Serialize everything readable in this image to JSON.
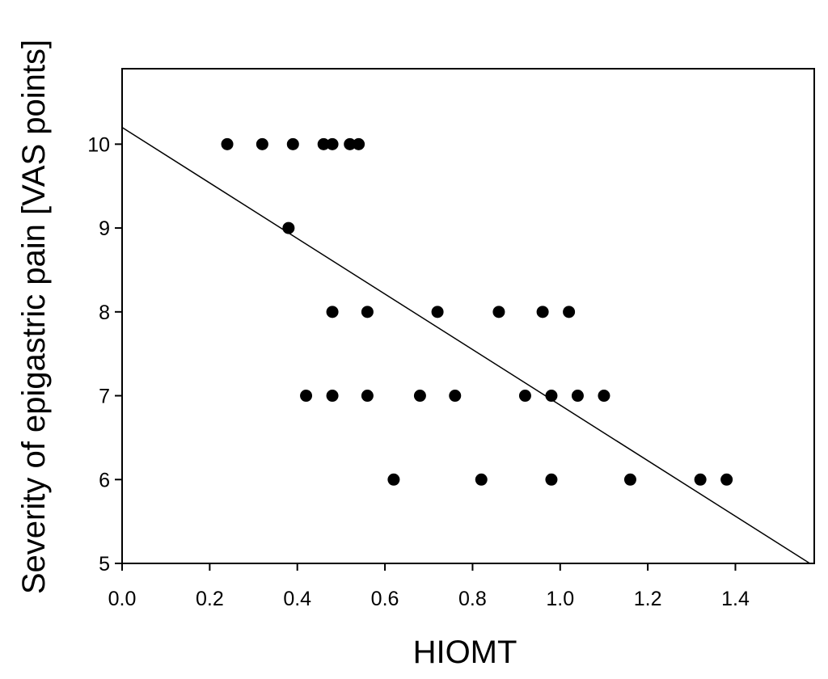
{
  "chart_data": {
    "type": "scatter",
    "title": "",
    "xlabel": "HIOMT",
    "ylabel": "Severity of epigastric pain [VAS points]",
    "xlim": [
      0.0,
      1.58
    ],
    "ylim": [
      5,
      10.9
    ],
    "x_ticks": [
      "0.0",
      "0.2",
      "0.4",
      "0.6",
      "0.8",
      "1.0",
      "1.2",
      "1.4"
    ],
    "y_ticks": [
      "5",
      "6",
      "7",
      "8",
      "9",
      "10"
    ],
    "grid": false,
    "series": [
      {
        "points": [
          {
            "x": 0.24,
            "y": 10
          },
          {
            "x": 0.32,
            "y": 10
          },
          {
            "x": 0.39,
            "y": 10
          },
          {
            "x": 0.46,
            "y": 10
          },
          {
            "x": 0.48,
            "y": 10
          },
          {
            "x": 0.52,
            "y": 10
          },
          {
            "x": 0.54,
            "y": 10
          },
          {
            "x": 0.38,
            "y": 9
          },
          {
            "x": 0.48,
            "y": 8
          },
          {
            "x": 0.56,
            "y": 8
          },
          {
            "x": 0.72,
            "y": 8
          },
          {
            "x": 0.86,
            "y": 8
          },
          {
            "x": 0.96,
            "y": 8
          },
          {
            "x": 1.02,
            "y": 8
          },
          {
            "x": 0.42,
            "y": 7
          },
          {
            "x": 0.48,
            "y": 7
          },
          {
            "x": 0.56,
            "y": 7
          },
          {
            "x": 0.68,
            "y": 7
          },
          {
            "x": 0.76,
            "y": 7
          },
          {
            "x": 0.92,
            "y": 7
          },
          {
            "x": 0.98,
            "y": 7
          },
          {
            "x": 1.04,
            "y": 7
          },
          {
            "x": 1.1,
            "y": 7
          },
          {
            "x": 0.62,
            "y": 6
          },
          {
            "x": 0.82,
            "y": 6
          },
          {
            "x": 0.98,
            "y": 6
          },
          {
            "x": 1.16,
            "y": 6
          },
          {
            "x": 1.32,
            "y": 6
          },
          {
            "x": 1.38,
            "y": 6
          }
        ]
      }
    ],
    "regression_line": {
      "x": [
        0.0,
        1.57
      ],
      "y": [
        10.2,
        5.0
      ]
    }
  }
}
